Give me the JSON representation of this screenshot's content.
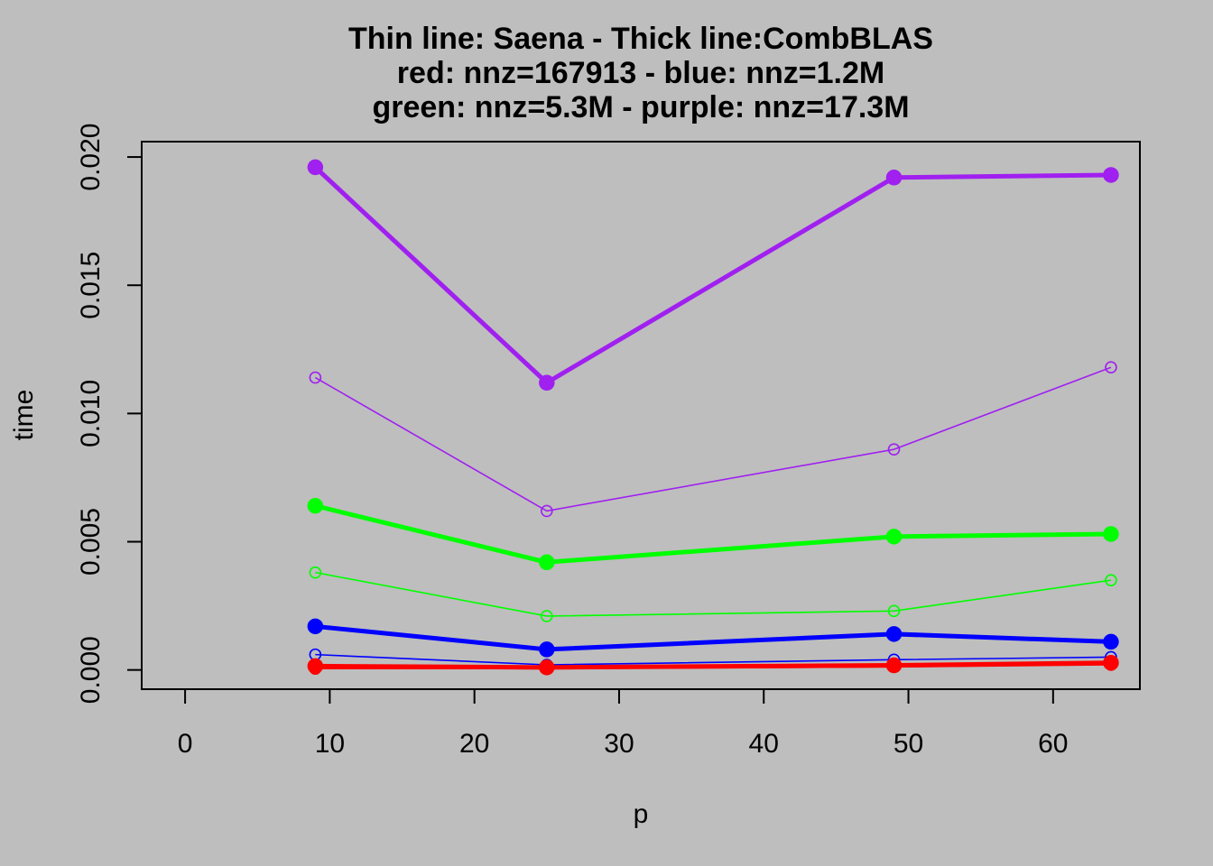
{
  "chart_data": {
    "type": "line",
    "title_lines": [
      "Thin line: Saena  -  Thick line:CombBLAS",
      "red: nnz=167913 -  blue: nnz=1.2M",
      "green: nnz=5.3M  -  purple: nnz=17.3M"
    ],
    "xlabel": "p",
    "ylabel": "time",
    "xlim": [
      -3,
      66
    ],
    "ylim": [
      -0.00075,
      0.0206
    ],
    "x_ticks": [
      0,
      10,
      20,
      30,
      40,
      50,
      60
    ],
    "x_tick_labels": [
      "0",
      "10",
      "20",
      "30",
      "40",
      "50",
      "60"
    ],
    "y_ticks": [
      0,
      0.005,
      0.01,
      0.015,
      0.02
    ],
    "y_tick_labels": [
      "0.000",
      "0.005",
      "0.010",
      "0.015",
      "0.020"
    ],
    "x": [
      9,
      25,
      49,
      64
    ],
    "series": [
      {
        "color": "#a020f0",
        "style": "thick",
        "values": [
          0.0196,
          0.0112,
          0.0192,
          0.0193
        ]
      },
      {
        "color": "#a020f0",
        "style": "thin",
        "values": [
          0.0114,
          0.0062,
          0.0086,
          0.0118
        ]
      },
      {
        "color": "#00ff00",
        "style": "thick",
        "values": [
          0.0064,
          0.0042,
          0.0052,
          0.0053
        ]
      },
      {
        "color": "#00ff00",
        "style": "thin",
        "values": [
          0.0038,
          0.0021,
          0.0023,
          0.0035
        ]
      },
      {
        "color": "#0000ff",
        "style": "thick",
        "values": [
          0.0017,
          0.0008,
          0.0014,
          0.0011
        ]
      },
      {
        "color": "#0000ff",
        "style": "thin",
        "values": [
          0.0006,
          0.0002,
          0.0004,
          0.0005
        ]
      },
      {
        "color": "#ff0000",
        "style": "thick",
        "values": [
          0.00015,
          0.0001,
          0.00018,
          0.00028
        ]
      },
      {
        "color": "#ff0000",
        "style": "thin",
        "values": [
          5e-05,
          5e-05,
          0.00012,
          0.0002
        ]
      }
    ],
    "grid": false,
    "legend": "none"
  }
}
